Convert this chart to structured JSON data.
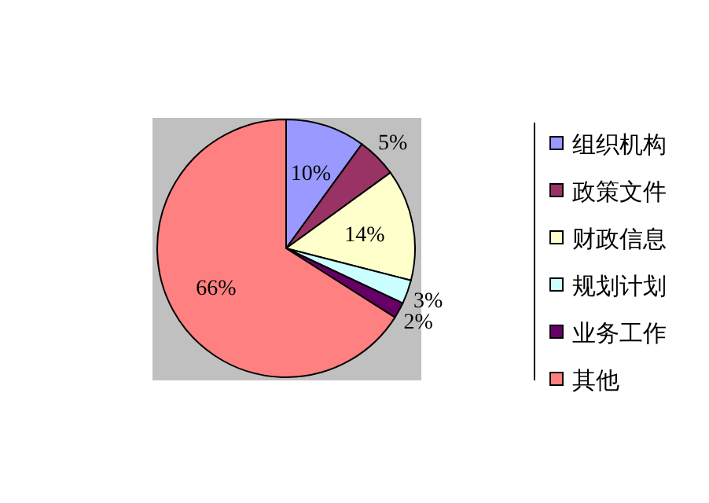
{
  "chart_data": {
    "type": "pie",
    "categories": [
      "组织机构",
      "政策文件",
      "财政信息",
      "规划计划",
      "业务工作",
      "其他"
    ],
    "values": [
      10,
      5,
      14,
      3,
      2,
      66
    ],
    "value_labels": [
      "10%",
      "5%",
      "14%",
      "3%",
      "2%",
      "66%"
    ],
    "colors": [
      "#9999ff",
      "#993366",
      "#ffffcc",
      "#ccffff",
      "#660066",
      "#ff8080"
    ],
    "legend": "right"
  }
}
